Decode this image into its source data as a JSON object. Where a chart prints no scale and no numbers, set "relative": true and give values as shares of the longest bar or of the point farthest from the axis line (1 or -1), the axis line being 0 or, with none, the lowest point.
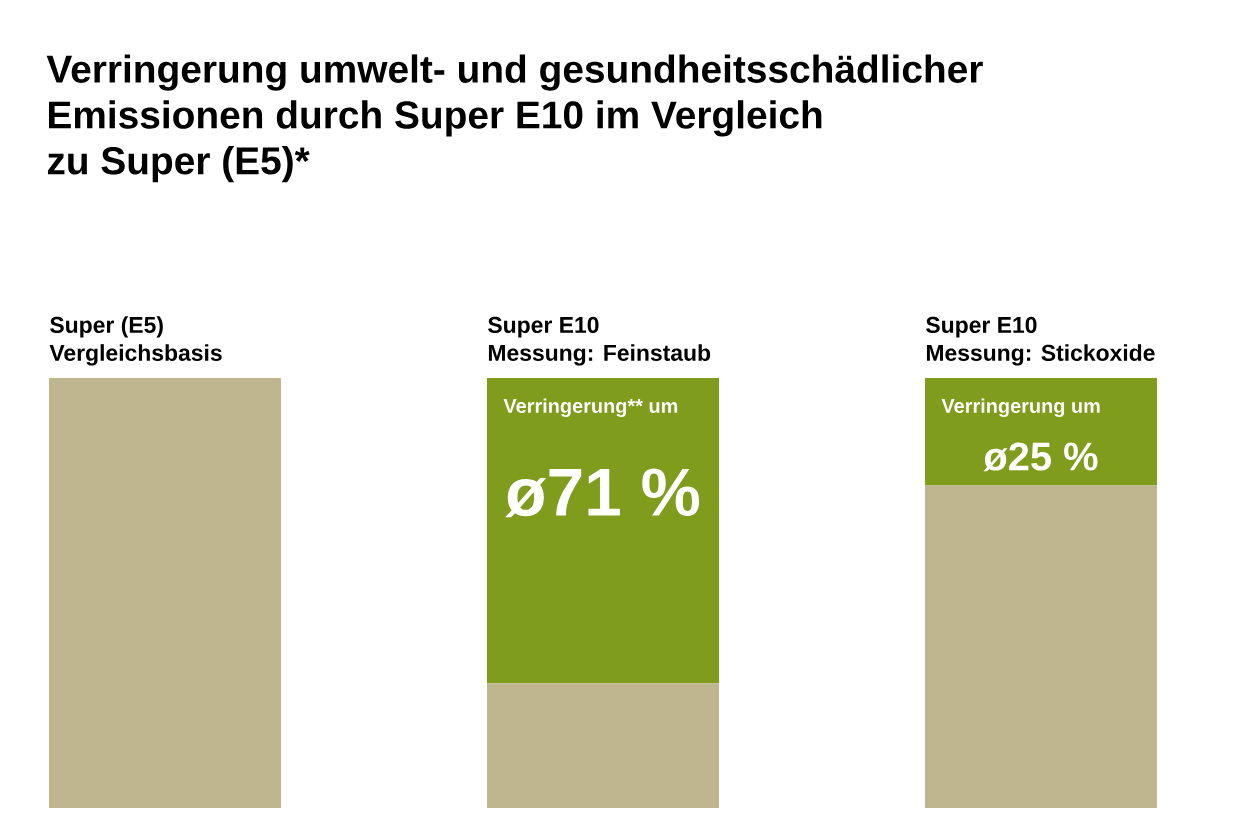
{
  "chart_data": {
    "type": "bar",
    "title": "Verringerung umwelt- und gesundheitsschädlicher\nEmissionen durch Super E10 im Vergleich\nzu Super (E5)*",
    "categories": [
      "Super (E5)\nVergleichsbasis",
      "Super E10\nMessung: Feinstaub",
      "Super E10\nMessung: Stickoxide"
    ],
    "relative": true,
    "stacked": true,
    "series": [
      {
        "color": "#bfb68f",
        "values": [
          1,
          0.29,
          0.75
        ]
      },
      {
        "color": "#7f9c1c",
        "values": [
          0,
          0.71,
          0.25
        ]
      }
    ],
    "annotations": [
      "Verringerung** um",
      "ø71 %",
      "Verringerung um",
      "ø25 %"
    ]
  }
}
